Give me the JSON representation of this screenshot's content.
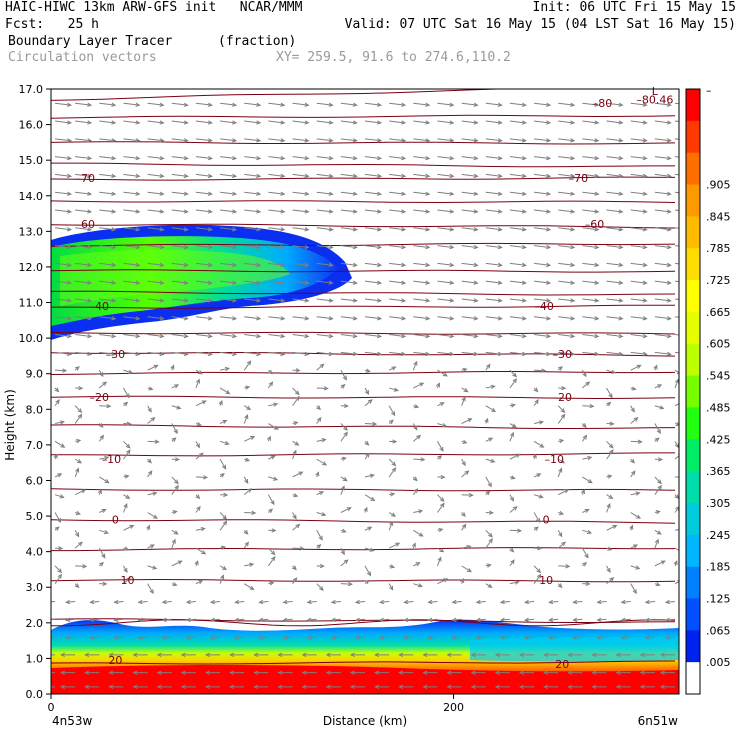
{
  "header": {
    "line1_left": "HAIC-HIWC 13km ARW-GFS init   NCAR/MMM",
    "line1_right": "Init: 06 UTC Fri 15 May 15",
    "line2_left": "Fcst:   25 h",
    "line2_right": "Valid: 07 UTC Sat 16 May 15 (04 LST Sat 16 May 15)",
    "field_name": "Boundary Layer Tracer",
    "field_units": "(fraction)",
    "vector_name": "Circulation vectors",
    "xy_range": "XY= 259.5, 91.6 to 274.6,110.2"
  },
  "chart_data": {
    "type": "cross-section",
    "ylabel": "Height (km)",
    "xlabel": "Distance (km)",
    "x_left_label": "4n53w",
    "x_right_label": "6n51w",
    "ylim": [
      0,
      17
    ],
    "xlim": [
      0,
      312
    ],
    "yticks": [
      "0.0",
      "1.0",
      "2.0",
      "3.0",
      "4.0",
      "5.0",
      "6.0",
      "7.0",
      "8.0",
      "9.0",
      "10.0",
      "11.0",
      "12.0",
      "13.0",
      "14.0",
      "15.0",
      "16.0",
      "17.0"
    ],
    "xticks": [
      {
        "value": 0,
        "label": "0"
      },
      {
        "value": 200,
        "label": "200"
      }
    ],
    "colorbar": {
      "top_label": "–",
      "labels": [
        ".905",
        ".845",
        ".785",
        ".725",
        ".665",
        ".605",
        ".545",
        ".485",
        ".425",
        ".365",
        ".305",
        ".245",
        ".185",
        ".125",
        ".065",
        ".005"
      ],
      "colors": [
        "#ff0000",
        "#ff3a00",
        "#ff6f00",
        "#ff9900",
        "#ffbb00",
        "#ffdd00",
        "#ffff00",
        "#e6ff00",
        "#bbff00",
        "#77ff00",
        "#22ff11",
        "#00ee66",
        "#00ddaa",
        "#00ccdd",
        "#00b6ff",
        "#0080ff",
        "#0050ff",
        "#0022ee",
        "#ffffff"
      ]
    },
    "contour_labels": [
      {
        "text": "–80.46",
        "x": 300,
        "y": 16.7
      },
      {
        "text": "–80",
        "x": 274,
        "y": 16.6
      },
      {
        "text": "–70",
        "x": 17,
        "y": 14.5
      },
      {
        "text": "–70",
        "x": 262,
        "y": 14.5
      },
      {
        "text": "–60",
        "x": 17,
        "y": 13.2
      },
      {
        "text": "–60",
        "x": 270,
        "y": 13.2
      },
      {
        "text": "–40",
        "x": 24,
        "y": 10.9
      },
      {
        "text": "–40",
        "x": 245,
        "y": 10.9
      },
      {
        "text": "–30",
        "x": 32,
        "y": 9.55
      },
      {
        "text": "–30",
        "x": 254,
        "y": 9.55
      },
      {
        "text": "–20",
        "x": 24,
        "y": 8.35
      },
      {
        "text": "–20",
        "x": 254,
        "y": 8.35
      },
      {
        "text": "–10",
        "x": 30,
        "y": 6.6
      },
      {
        "text": "–10",
        "x": 250,
        "y": 6.6
      },
      {
        "text": "0",
        "x": 32,
        "y": 4.9
      },
      {
        "text": "0",
        "x": 246,
        "y": 4.9
      },
      {
        "text": "10",
        "x": 38,
        "y": 3.2
      },
      {
        "text": "10",
        "x": 246,
        "y": 3.2
      },
      {
        "text": "20",
        "x": 32,
        "y": 0.95
      },
      {
        "text": "20",
        "x": 254,
        "y": 0.85
      },
      {
        "text": "L",
        "x": 300,
        "y": 16.95
      }
    ],
    "contour_levels_y": [
      16.7,
      16.2,
      15.5,
      14.9,
      14.45,
      13.85,
      13.2,
      12.6,
      11.9,
      11.3,
      10.85,
      10.15,
      9.6,
      9.0,
      8.35,
      7.55,
      6.7,
      5.75,
      4.9,
      4.05,
      3.2,
      2.1,
      0.85
    ],
    "vector_rows_y": [
      16.6,
      16.1,
      15.6,
      15.1,
      14.6,
      14.1,
      13.6,
      13.1,
      12.6,
      12.1,
      11.6,
      11.1,
      10.6,
      10.1,
      9.6,
      9.1,
      8.6,
      8.1,
      7.6,
      7.1,
      6.6,
      6.1,
      5.6,
      5.1,
      4.6,
      4.1,
      3.6,
      3.1,
      2.6,
      2.1,
      1.6,
      1.1,
      0.6,
      0.2
    ],
    "vector_cols_x": [
      2,
      12,
      24,
      36,
      48,
      60,
      72,
      84,
      96,
      108,
      120,
      132,
      144,
      156,
      168,
      180,
      192,
      204,
      216,
      228,
      240,
      252,
      264,
      276,
      288,
      300,
      310
    ]
  }
}
